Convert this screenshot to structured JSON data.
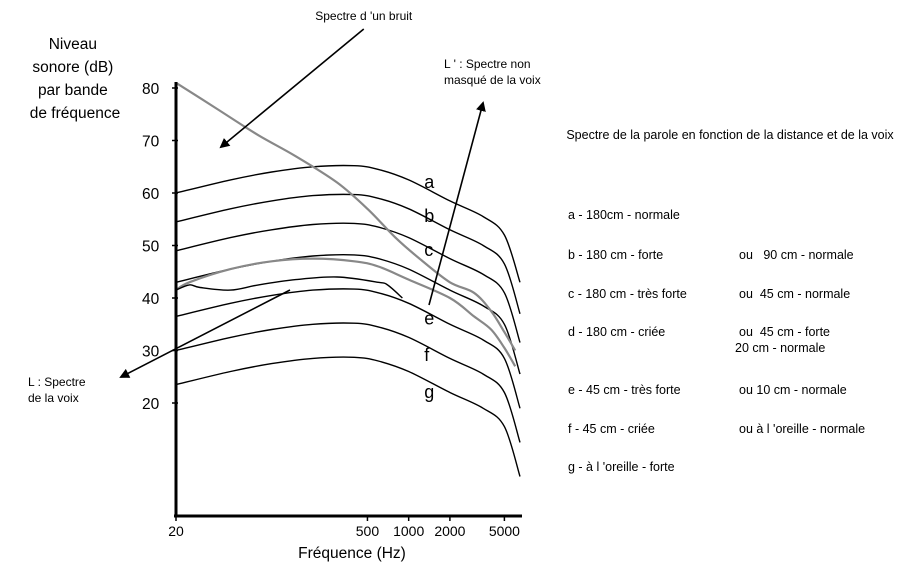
{
  "chart_data": {
    "type": "line",
    "ylabel": "Niveau sonore (dB) par bande de fréquence",
    "xlabel": "Fréquence (Hz)",
    "x_scale": "log",
    "xlim": [
      20,
      6500
    ],
    "ylim": [
      10,
      85
    ],
    "x_ticks": [
      {
        "value": 20,
        "label": "20"
      },
      {
        "value": 500,
        "label": "500"
      },
      {
        "value": 1000,
        "label": "1000"
      },
      {
        "value": 2000,
        "label": "2000"
      },
      {
        "value": 5000,
        "label": "5000"
      }
    ],
    "y_ticks": [
      {
        "value": 20,
        "label": "20"
      },
      {
        "value": 30,
        "label": "30"
      },
      {
        "value": 40,
        "label": "40"
      },
      {
        "value": 50,
        "label": "50"
      },
      {
        "value": 60,
        "label": "60"
      },
      {
        "value": 70,
        "label": "70"
      },
      {
        "value": 80,
        "label": "80"
      }
    ],
    "series": [
      {
        "name": "a",
        "color": "#000000",
        "x": [
          20,
          50,
          100,
          200,
          400,
          600,
          1000,
          2000,
          3500,
          5000,
          6500
        ],
        "y": [
          60,
          62.5,
          64,
          65,
          65.2,
          64.5,
          62.5,
          58.5,
          55.5,
          52,
          43
        ]
      },
      {
        "name": "b",
        "color": "#000000",
        "x": [
          20,
          50,
          100,
          200,
          400,
          600,
          1000,
          2000,
          3500,
          5000,
          6500
        ],
        "y": [
          54.5,
          57,
          58.5,
          59.5,
          59.7,
          59,
          57,
          53,
          50,
          46.5,
          37
        ]
      },
      {
        "name": "c",
        "color": "#000000",
        "x": [
          20,
          50,
          100,
          200,
          400,
          600,
          1000,
          2000,
          3500,
          5000,
          6500
        ],
        "y": [
          49,
          51.5,
          53,
          54,
          54.2,
          53.5,
          51.5,
          47.5,
          44.5,
          41,
          31.5
        ]
      },
      {
        "name": "d",
        "color": "#000000",
        "x": [
          20,
          50,
          100,
          200,
          400,
          600,
          1000,
          2000,
          3500,
          5000,
          6500
        ],
        "y": [
          43,
          45.5,
          47,
          48,
          48.2,
          47.5,
          45.5,
          41.5,
          38.5,
          35,
          25.5
        ]
      },
      {
        "name": "e",
        "color": "#000000",
        "x": [
          20,
          50,
          100,
          200,
          400,
          600,
          1000,
          2000,
          3500,
          5000,
          6500
        ],
        "y": [
          36.5,
          39,
          40.5,
          41.5,
          41.7,
          41,
          39,
          35,
          32,
          28.5,
          19
        ]
      },
      {
        "name": "f",
        "color": "#000000",
        "x": [
          20,
          50,
          100,
          200,
          400,
          600,
          1000,
          2000,
          3500,
          5000,
          6500
        ],
        "y": [
          30,
          32.5,
          34,
          35,
          35.2,
          34.5,
          32.5,
          28.5,
          25.5,
          22,
          12.5
        ]
      },
      {
        "name": "g",
        "color": "#000000",
        "x": [
          20,
          50,
          100,
          200,
          400,
          600,
          1000,
          2000,
          3500,
          5000,
          6500
        ],
        "y": [
          23.5,
          26,
          27.5,
          28.5,
          28.7,
          28,
          26,
          22,
          19,
          15.5,
          6
        ]
      },
      {
        "name": "Spectre d 'un bruit",
        "color": "#888888",
        "x": [
          20,
          40,
          80,
          150,
          300,
          500,
          800,
          1200,
          2000,
          3000,
          4000,
          5000,
          6000
        ],
        "y": [
          81,
          76,
          71,
          67,
          62,
          57,
          51.5,
          47.5,
          43,
          41,
          37.5,
          33.5,
          30
        ]
      },
      {
        "name": "L : Spectre de la voix",
        "color": "#888888",
        "x": [
          20,
          25,
          50,
          100,
          200,
          400,
          600,
          1000,
          2000,
          3000,
          4000,
          5000,
          6000
        ],
        "y": [
          41.5,
          43,
          45.5,
          47,
          47.5,
          47,
          46,
          43.5,
          40,
          36.5,
          34,
          30.5,
          27
        ]
      },
      {
        "name": "L ' : Spectre non masqué de la voix",
        "color": "#000000",
        "x": [
          20,
          25,
          30,
          50,
          80,
          150,
          300,
          600,
          700,
          900
        ],
        "y": [
          41.5,
          42.5,
          42,
          41.5,
          42.5,
          43.5,
          44,
          43,
          42.5,
          40
        ]
      }
    ],
    "curve_labels": [
      {
        "text": "a",
        "x": 1300,
        "y": 61
      },
      {
        "text": "b",
        "x": 1300,
        "y": 54.5
      },
      {
        "text": "c",
        "x": 1300,
        "y": 48
      },
      {
        "text": "e",
        "x": 1300,
        "y": 35
      },
      {
        "text": "f",
        "x": 1300,
        "y": 28
      },
      {
        "text": "g",
        "x": 1300,
        "y": 21
      }
    ],
    "annotations": [
      {
        "text": "Spectre d 'un bruit",
        "x": 470,
        "y": 87
      },
      {
        "text": "L ' : Spectre non masqué de la voix",
        "x": 3000,
        "y": 82
      },
      {
        "text": "L : Spectre de la voix",
        "x": 20,
        "y": 33
      }
    ]
  },
  "legend": {
    "title": "Spectre de la parole en fonction de la distance et de la voix",
    "items": [
      {
        "text": "a - 180cm - normale",
        "alt": "",
        "extra": ""
      },
      {
        "text": "b - 180 cm - forte",
        "alt": "ou   90 cm - normale",
        "extra": ""
      },
      {
        "text": "c - 180 cm - très forte",
        "alt": "ou  45 cm - normale",
        "extra": ""
      },
      {
        "text": "d - 180 cm - criée",
        "alt": "ou  45 cm - forte",
        "extra": "20 cm - normale"
      },
      {
        "text": "e - 45 cm - très forte",
        "alt": "ou 10 cm - normale",
        "extra": ""
      },
      {
        "text": "f - 45 cm - criée",
        "alt": "ou à l 'oreille - normale",
        "extra": ""
      },
      {
        "text": "g - à l 'oreille - forte",
        "alt": "",
        "extra": ""
      }
    ]
  }
}
